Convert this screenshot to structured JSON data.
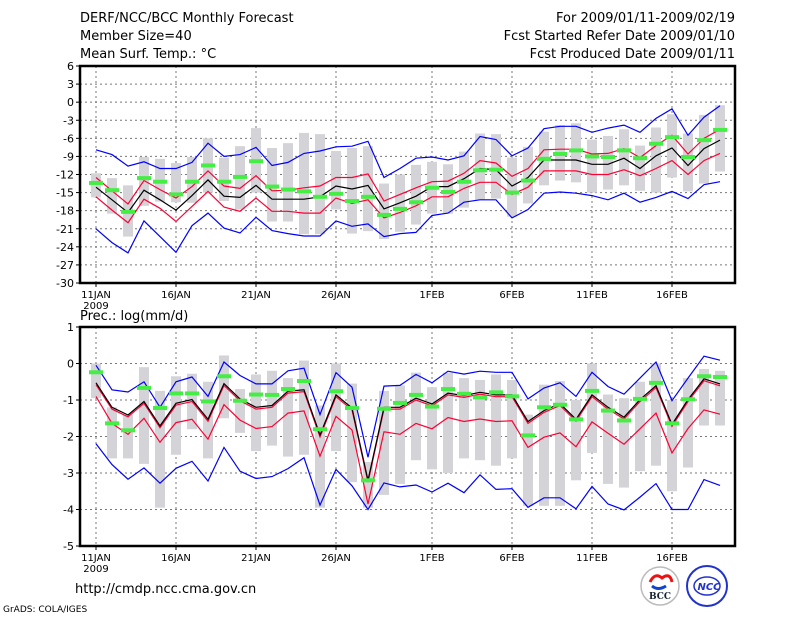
{
  "header": {
    "title": "DERF/NCC/BCC Monthly Forecast",
    "member_size": "Member Size=40",
    "variable": "Mean Surf. Temp.: °C",
    "period": "For 2009/01/11-2009/02/19",
    "start_date": "Fcst Started Refer Date 2009/01/10",
    "produced_date": "Fcst Produced Date 2009/01/11"
  },
  "footer": {
    "url": "http://cmdp.ncc.cma.gov.cn",
    "credit": "GrADS: COLA/IGES",
    "logos": [
      "BCC",
      "NCC"
    ]
  },
  "colors": {
    "max_min": "#0000ff",
    "spread": "#ff0033",
    "mean": "#000000",
    "marker": "#44ee44",
    "box": "#d4d4d8"
  },
  "chart_data": [
    {
      "type": "line",
      "title": "Mean Surf. Temp.: °C",
      "ylim": [
        -30,
        6
      ],
      "yticks": [
        "6",
        "3",
        "0",
        "-3",
        "-6",
        "-9",
        "-12",
        "-15",
        "-18",
        "-21",
        "-24",
        "-27",
        "-30"
      ],
      "ytick_values": [
        6,
        3,
        0,
        -3,
        -6,
        -9,
        -12,
        -15,
        -18,
        -21,
        -24,
        -27,
        -30
      ],
      "x_start": "2009-01-11",
      "days": 40,
      "xticks": [
        "11JAN",
        "16JAN",
        "21JAN",
        "26JAN",
        "1FEB",
        "6FEB",
        "11FEB",
        "16FEB"
      ],
      "xtick_days": [
        0,
        5,
        10,
        15,
        21,
        26,
        31,
        36
      ],
      "year_label": "2009",
      "grid": true,
      "box_low": [
        -15.8,
        -18.5,
        -22.3,
        -17.2,
        -16.5,
        -16.6,
        -16.7,
        -15,
        -16.4,
        -17.8,
        -15,
        -19.8,
        -19.8,
        -21.9,
        -21.9,
        -17.8,
        -21.8,
        -21.4,
        -22.7,
        -21.5,
        -20.3,
        -18.5,
        -18.5,
        -17.5,
        -16.2,
        -16,
        -19,
        -16.8,
        -13.8,
        -13,
        -13.3,
        -15,
        -14.5,
        -13.8,
        -14.7,
        -15,
        -12.5,
        -14.8,
        -13.5,
        -11.5
      ],
      "box_high": [
        -11.8,
        -12.6,
        -13.8,
        -9.1,
        -9.4,
        -10.1,
        -9.1,
        -6,
        -9.2,
        -7.3,
        -4.3,
        -7.6,
        -6.8,
        -5.1,
        -5.3,
        -8.1,
        -7.6,
        -7.3,
        -13.5,
        -12,
        -10.4,
        -9.9,
        -10.3,
        -8.2,
        -5.2,
        -5.3,
        -9.2,
        -7.4,
        -4.9,
        -3.8,
        -3.5,
        -6.2,
        -5.6,
        -4.5,
        -7.2,
        -4.2,
        -2,
        -5.2,
        -2.1,
        -0.5
      ],
      "series": [
        {
          "name": "max",
          "color": "#0000ff",
          "values": [
            -7.9,
            -8.7,
            -10.6,
            -9.9,
            -11,
            -11,
            -10,
            -6.8,
            -9,
            -8.7,
            -7.5,
            -10.5,
            -10,
            -8.5,
            -8.1,
            -7.4,
            -7.3,
            -6.5,
            -12.5,
            -11,
            -9.3,
            -9.1,
            -9.6,
            -8.9,
            -5.7,
            -6.2,
            -8.9,
            -7.6,
            -4.4,
            -4,
            -4,
            -5,
            -4.3,
            -3.8,
            -5,
            -2.7,
            -1.1,
            -5.5,
            -2.5,
            -0.6
          ]
        },
        {
          "name": "min",
          "color": "#0000ff",
          "values": [
            -21,
            -23.3,
            -25,
            -19.7,
            -22.3,
            -24.9,
            -20.5,
            -18.4,
            -20.9,
            -21.7,
            -19.1,
            -21.3,
            -21.8,
            -22.2,
            -22.2,
            -19.7,
            -20.6,
            -20.2,
            -22.3,
            -21.8,
            -21.6,
            -18.8,
            -18.4,
            -16.6,
            -16.2,
            -16.2,
            -19.2,
            -17.8,
            -15.1,
            -14.9,
            -15.1,
            -15.5,
            -16.2,
            -15.1,
            -16.6,
            -15.8,
            -14.8,
            -16,
            -13.7,
            -13.2
          ]
        },
        {
          "name": "upper",
          "color": "#ff0033",
          "values": [
            -12.5,
            -14.7,
            -16.9,
            -13,
            -14.5,
            -15.9,
            -14,
            -11.4,
            -13.9,
            -14.3,
            -12.2,
            -14.7,
            -14.6,
            -14.2,
            -13.9,
            -12.5,
            -12.5,
            -11.9,
            -16.4,
            -15.3,
            -14.2,
            -13.2,
            -13.1,
            -11.8,
            -9.7,
            -10.1,
            -12.3,
            -11,
            -7.9,
            -7.8,
            -7.8,
            -8.6,
            -8.5,
            -7.7,
            -9.2,
            -7.2,
            -5.5,
            -8.6,
            -6,
            -4.5
          ]
        },
        {
          "name": "lower",
          "color": "#ff0033",
          "values": [
            -15.7,
            -17.9,
            -20,
            -16.1,
            -17.6,
            -19.8,
            -17.3,
            -14.8,
            -17.4,
            -18.1,
            -15.9,
            -18.1,
            -18.1,
            -18.4,
            -18.4,
            -15.9,
            -16.8,
            -16.2,
            -19.2,
            -18.3,
            -17.2,
            -15.7,
            -15.7,
            -14.3,
            -13.3,
            -13.3,
            -15.3,
            -14.1,
            -11.4,
            -11.4,
            -11.4,
            -12,
            -12,
            -11.2,
            -12.2,
            -11,
            -9.7,
            -12,
            -9.7,
            -8.5
          ]
        },
        {
          "name": "mean",
          "color": "#000000",
          "values": [
            -14.1,
            -16.2,
            -18.3,
            -14.6,
            -16.2,
            -17.9,
            -15.5,
            -12.9,
            -15.6,
            -15.8,
            -13.8,
            -16.1,
            -16.1,
            -16.1,
            -15.7,
            -13.9,
            -14.4,
            -13.8,
            -17.7,
            -16.7,
            -15.6,
            -14,
            -14,
            -12.7,
            -11,
            -11.2,
            -13.9,
            -12.5,
            -9.6,
            -9.6,
            -9.6,
            -10.3,
            -10.3,
            -9.3,
            -11,
            -8.9,
            -7.6,
            -10.5,
            -7.7,
            -6.3
          ]
        },
        {
          "name": "marker",
          "color": "#44ee44",
          "values": [
            -13.4,
            -14.6,
            -18.2,
            -12.6,
            -13.2,
            -15.3,
            -13.2,
            -10.5,
            -13.2,
            -12.4,
            -9.8,
            -14,
            -14.5,
            -14.8,
            -15.7,
            -15.2,
            -16.4,
            -15.7,
            -18.7,
            -17.7,
            -16.6,
            -14.2,
            -14.9,
            -13.2,
            -11.3,
            -11.2,
            -15,
            -13,
            -9.4,
            -8.6,
            -8,
            -9,
            -9.1,
            -8,
            -9.3,
            -6.9,
            -5.8,
            -9.1,
            -6.3,
            -4.6
          ]
        }
      ]
    },
    {
      "type": "line",
      "title": "Prec.: log(mm/d)",
      "ylim": [
        -5,
        1
      ],
      "yticks": [
        "1",
        "0",
        "-1",
        "-2",
        "-3",
        "-4",
        "-5"
      ],
      "ytick_values": [
        1,
        0,
        -1,
        -2,
        -3,
        -4,
        -5
      ],
      "x_start": "2009-01-11",
      "days": 40,
      "xticks": [
        "11JAN",
        "16JAN",
        "21JAN",
        "26JAN",
        "1FEB",
        "6FEB",
        "11FEB",
        "16FEB"
      ],
      "xtick_days": [
        0,
        5,
        10,
        15,
        21,
        26,
        31,
        36
      ],
      "year_label": "2009",
      "grid": true,
      "box_low": [
        -0.95,
        -2.6,
        -2.6,
        -2.75,
        -3.95,
        -2.5,
        -1.8,
        -2.6,
        -1.5,
        -1.9,
        -2.4,
        -2.25,
        -2.55,
        -2.5,
        -3.95,
        -2.4,
        -3.25,
        -3.95,
        -3.6,
        -3.3,
        -2.65,
        -2.9,
        -3,
        -2.6,
        -2.65,
        -2.8,
        -2.6,
        -3.9,
        -3.9,
        -3.9,
        -3.2,
        -2.45,
        -3.3,
        -3.4,
        -2.95,
        -2.8,
        -3.5,
        -2.85,
        -1.7,
        -1.7
      ],
      "box_high": [
        0,
        -1.2,
        -1.4,
        -0.1,
        -0.75,
        -0.35,
        -0.28,
        -0.5,
        0.22,
        -0.7,
        -0.3,
        -0.2,
        -0.4,
        0.08,
        -1.15,
        0,
        -0.55,
        -2.7,
        -0.75,
        -0.6,
        -0.25,
        -0.65,
        -0.25,
        -0.4,
        -0.45,
        -0.3,
        -0.45,
        -1.4,
        -0.58,
        -0.48,
        -1,
        0,
        -0.85,
        -0.95,
        -0.5,
        0,
        -1,
        -0.4,
        -0.15,
        -0.2
      ],
      "series": [
        {
          "name": "max",
          "color": "#0000ff",
          "values": [
            -0.05,
            -0.72,
            -0.78,
            -0.5,
            -1.2,
            -0.5,
            -0.37,
            -0.9,
            0.04,
            -0.33,
            -0.56,
            -0.56,
            -0.2,
            -0.13,
            -1.4,
            -0.25,
            -0.65,
            -2.57,
            -0.62,
            -0.6,
            -0.3,
            -0.53,
            -0.21,
            -0.29,
            -0.21,
            -0.24,
            -0.24,
            -0.97,
            -0.67,
            -0.53,
            -0.9,
            -0.24,
            -0.63,
            -0.84,
            -0.4,
            0.04,
            -1.02,
            -0.4,
            0.2,
            0.09
          ]
        },
        {
          "name": "min",
          "color": "#0000ff",
          "values": [
            -2.2,
            -2.77,
            -3.17,
            -2.86,
            -3.28,
            -2.87,
            -2.68,
            -3.22,
            -2.3,
            -2.95,
            -3.15,
            -3.1,
            -2.88,
            -2.58,
            -3.88,
            -2.9,
            -3.35,
            -4,
            -3.27,
            -3.38,
            -3.33,
            -3.52,
            -3.28,
            -3.54,
            -3.05,
            -3.45,
            -3.43,
            -3.94,
            -3.68,
            -3.68,
            -3.98,
            -3.37,
            -3.85,
            -4.01,
            -3.66,
            -3.29,
            -4,
            -4,
            -3.18,
            -3.34
          ]
        },
        {
          "name": "upper",
          "color": "#ff0033",
          "values": [
            -0.58,
            -1.25,
            -1.46,
            -1.09,
            -1.76,
            -1.14,
            -1.04,
            -1.58,
            -0.6,
            -1.02,
            -1.25,
            -1.2,
            -0.81,
            -0.77,
            -2.01,
            -0.91,
            -1.27,
            -3.25,
            -1.25,
            -1.25,
            -1,
            -1.16,
            -0.86,
            -0.93,
            -0.84,
            -0.91,
            -0.91,
            -1.64,
            -1.34,
            -1.15,
            -1.58,
            -0.91,
            -1.25,
            -1.52,
            -1.04,
            -0.66,
            -1.72,
            -1.04,
            -0.47,
            -0.61
          ]
        },
        {
          "name": "lower",
          "color": "#ff0033",
          "values": [
            -0.9,
            -1.64,
            -1.94,
            -1.5,
            -2.16,
            -1.62,
            -1.53,
            -2.07,
            -1.13,
            -1.55,
            -1.78,
            -1.73,
            -1.36,
            -1.3,
            -2.54,
            -1.45,
            -1.82,
            -3.85,
            -1.87,
            -1.94,
            -1.64,
            -1.79,
            -1.48,
            -1.59,
            -1.52,
            -1.59,
            -1.57,
            -2.3,
            -2.02,
            -1.9,
            -2.28,
            -1.6,
            -1.91,
            -2.21,
            -1.79,
            -1.36,
            -2.45,
            -1.78,
            -1.27,
            -1.39
          ]
        },
        {
          "name": "mean",
          "color": "#000000",
          "values": [
            -0.53,
            -1.2,
            -1.41,
            -1.04,
            -1.71,
            -1.09,
            -0.99,
            -1.53,
            -0.55,
            -0.97,
            -1.2,
            -1.15,
            -0.76,
            -0.72,
            -1.96,
            -0.86,
            -1.22,
            -3.2,
            -1.2,
            -1.2,
            -0.95,
            -1.11,
            -0.81,
            -0.88,
            -0.79,
            -0.86,
            -0.86,
            -1.59,
            -1.29,
            -1.1,
            -1.53,
            -0.86,
            -1.2,
            -1.47,
            -0.99,
            -0.61,
            -1.67,
            -0.99,
            -0.42,
            -0.56
          ]
        },
        {
          "name": "marker",
          "color": "#44ee44",
          "values": [
            -0.24,
            -1.64,
            -1.83,
            -0.67,
            -1.22,
            -0.82,
            -0.82,
            -1.04,
            -0.35,
            -1.02,
            -0.85,
            -0.86,
            -0.7,
            -0.48,
            -1.8,
            -0.76,
            -1.22,
            -3.2,
            -1.24,
            -1.08,
            -0.86,
            -1.18,
            -0.7,
            -0.83,
            -0.93,
            -0.79,
            -0.9,
            -1.97,
            -1.2,
            -1.13,
            -1.53,
            -0.75,
            -1.29,
            -1.56,
            -0.97,
            -0.53,
            -1.64,
            -0.98,
            -0.35,
            -0.37
          ]
        }
      ]
    }
  ]
}
